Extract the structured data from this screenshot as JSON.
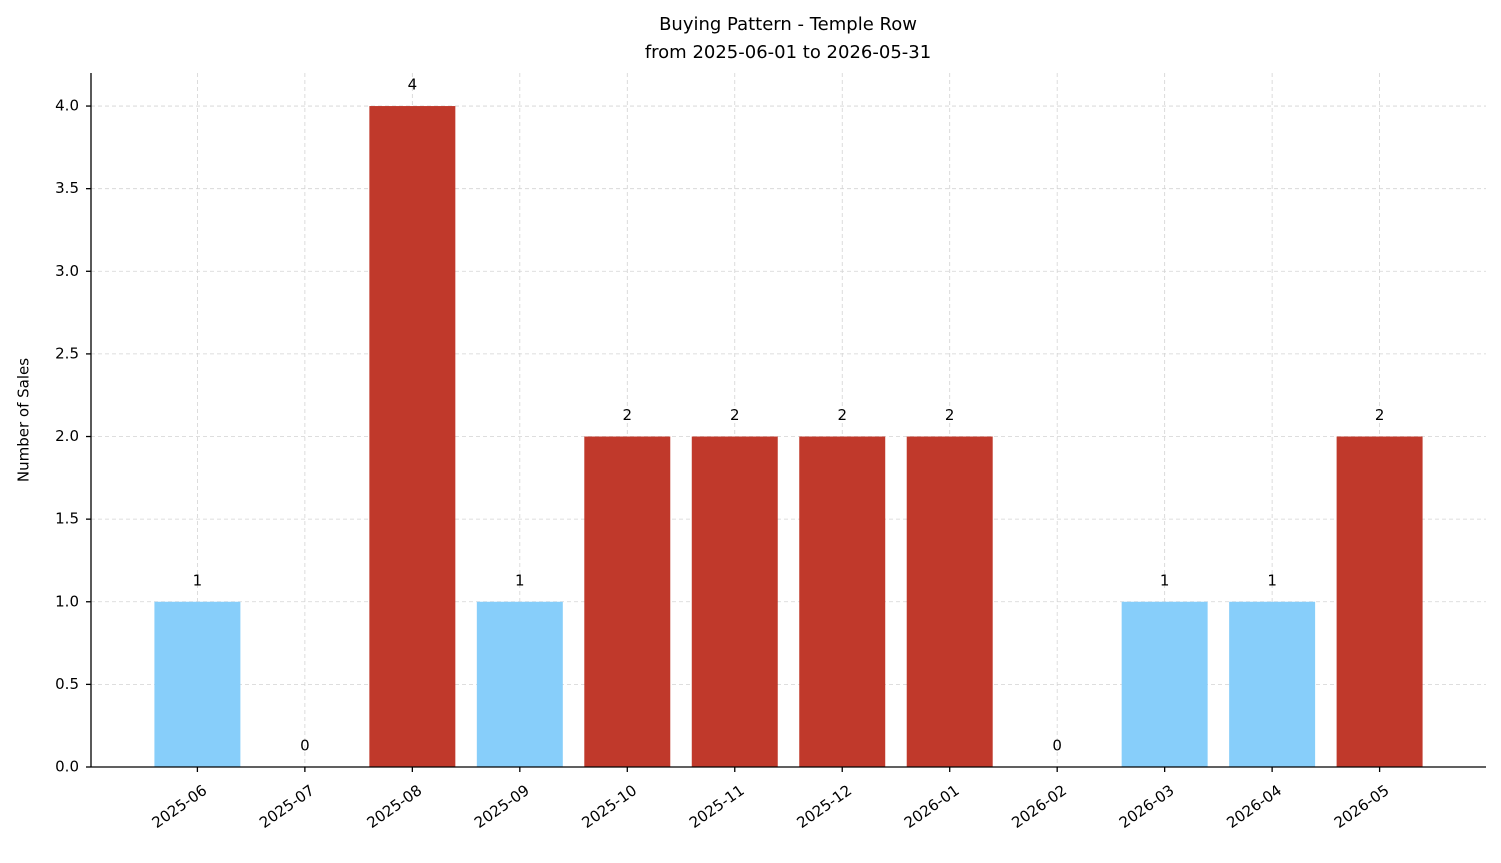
{
  "chart_data": {
    "type": "bar",
    "title": "Buying Pattern - Temple Row",
    "subtitle": "from 2025-06-01 to 2026-05-31",
    "y_label": "Number of Sales",
    "categories": [
      "2025-06",
      "2025-07",
      "2025-08",
      "2025-09",
      "2025-10",
      "2025-11",
      "2025-12",
      "2026-01",
      "2026-02",
      "2026-03",
      "2026-04",
      "2026-05"
    ],
    "values": [
      1,
      0,
      4,
      1,
      2,
      2,
      2,
      2,
      0,
      1,
      1,
      2
    ],
    "colors": [
      "#87cefa",
      "#c0392b",
      "#c0392b",
      "#87cefa",
      "#c0392b",
      "#c0392b",
      "#c0392b",
      "#c0392b",
      "#c0392b",
      "#87cefa",
      "#87cefa",
      "#c0392b"
    ],
    "ylim": [
      0,
      4.2
    ],
    "yticks": [
      {
        "value": 0,
        "label": "0.0"
      },
      0.5,
      {
        "value": 1,
        "label": "1.0"
      },
      1.5,
      {
        "value": 2,
        "label": "2.0"
      },
      2.5,
      {
        "value": 3,
        "label": "3.0"
      },
      3.5,
      {
        "value": 4,
        "label": "4.0"
      }
    ],
    "grid": true
  }
}
